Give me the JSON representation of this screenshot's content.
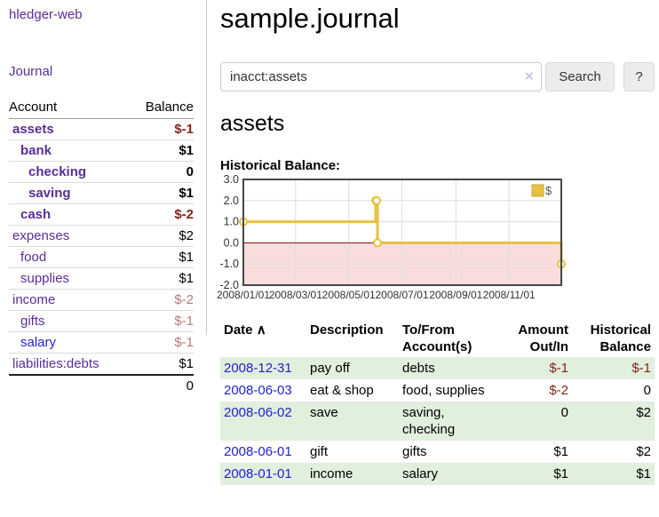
{
  "colors": {
    "accent_purple": "#5a2d96",
    "link_blue": "#2222cc",
    "negative_dark_red": "#86231c",
    "negative_light_red": "#bb7a7a",
    "row_stripe_green": "#e1efdd",
    "series_gold": "#e7c13f",
    "zero_line_red": "#8b0000",
    "negative_region_pink": "#f9dddd"
  },
  "sidebar": {
    "brand": "hledger-web",
    "nav_journal": "Journal",
    "accounts": {
      "header_account": "Account",
      "header_balance": "Balance",
      "rows": [
        {
          "name": "assets",
          "level": 0,
          "balance": "$-1",
          "bold": true,
          "balance_tone": "dark"
        },
        {
          "name": "bank",
          "level": 1,
          "balance": "$1",
          "bold": true,
          "balance_tone": "normal"
        },
        {
          "name": "checking",
          "level": 2,
          "balance": "0",
          "bold": true,
          "balance_tone": "normal"
        },
        {
          "name": "saving",
          "level": 2,
          "balance": "$1",
          "bold": true,
          "balance_tone": "normal"
        },
        {
          "name": "cash",
          "level": 1,
          "balance": "$-2",
          "bold": true,
          "balance_tone": "dark"
        },
        {
          "name": "expenses",
          "level": 0,
          "balance": "$2",
          "bold": false,
          "balance_tone": "normal"
        },
        {
          "name": "food",
          "level": 1,
          "balance": "$1",
          "bold": false,
          "balance_tone": "normal"
        },
        {
          "name": "supplies",
          "level": 1,
          "balance": "$1",
          "bold": false,
          "balance_tone": "normal"
        },
        {
          "name": "income",
          "level": 0,
          "balance": "$-2",
          "bold": false,
          "balance_tone": "light"
        },
        {
          "name": "gifts",
          "level": 1,
          "balance": "$-1",
          "bold": false,
          "balance_tone": "light"
        },
        {
          "name": "salary",
          "level": 1,
          "balance": "$-1",
          "bold": false,
          "balance_tone": "light",
          "link_color": "blue"
        },
        {
          "name": "liabilities:debts",
          "level": 0,
          "balance": "$1",
          "bold": false,
          "balance_tone": "normal"
        }
      ],
      "total": "0"
    }
  },
  "main": {
    "title": "sample.journal",
    "search": {
      "value": "inacct:assets",
      "clear_icon": "×",
      "search_button": "Search",
      "help_button": "?"
    },
    "account_heading": "assets",
    "chart_title": "Historical Balance:",
    "chart_data": {
      "type": "line",
      "step": true,
      "title": "Historical Balance:",
      "series": [
        {
          "name": "$",
          "color": "#e7c13f",
          "points": [
            {
              "date": "2008-01-01",
              "value": 1
            },
            {
              "date": "2008-06-01",
              "value": 2
            },
            {
              "date": "2008-06-02",
              "value": 2
            },
            {
              "date": "2008-06-03",
              "value": 0
            },
            {
              "date": "2008-12-31",
              "value": -1
            }
          ]
        }
      ],
      "xlim": [
        "2008-01-01",
        "2008-12-31"
      ],
      "ylim": [
        -2,
        3
      ],
      "yticks": [
        "3.0",
        "2.0",
        "1.0",
        "0.0",
        "-1.0",
        "-2.0"
      ],
      "xticks": [
        {
          "date": "2008-01-01",
          "label": "2008/01/01"
        },
        {
          "date": "2008-03-01",
          "label": "2008/03/01"
        },
        {
          "date": "2008-05-01",
          "label": "2008/05/01"
        },
        {
          "date": "2008-07-01",
          "label": "2008/07/01"
        },
        {
          "date": "2008-09-01",
          "label": "2008/09/01"
        },
        {
          "date": "2008-11-01",
          "label": "2008/11/01"
        }
      ],
      "legend": {
        "label": "$",
        "position": "top-right"
      },
      "grid": true
    },
    "register": {
      "headers": {
        "date": "Date",
        "sort_icon": "∧",
        "description": "Description",
        "accounts": "To/From Account(s)",
        "amount": "Amount Out/In",
        "balance": "Historical Balance"
      },
      "rows": [
        {
          "date": "2008-12-31",
          "description": "pay off",
          "accounts": "debts",
          "amount": "$-1",
          "amount_negative": true,
          "balance": "$-1",
          "balance_negative": true
        },
        {
          "date": "2008-06-03",
          "description": "eat & shop",
          "accounts": "food, supplies",
          "amount": "$-2",
          "amount_negative": true,
          "balance": "0",
          "balance_negative": false
        },
        {
          "date": "2008-06-02",
          "description": "save",
          "accounts": "saving,\nchecking",
          "amount": "0",
          "amount_negative": false,
          "balance": "$2",
          "balance_negative": false
        },
        {
          "date": "2008-06-01",
          "description": "gift",
          "accounts": "gifts",
          "amount": "$1",
          "amount_negative": false,
          "balance": "$2",
          "balance_negative": false
        },
        {
          "date": "2008-01-01",
          "description": "income",
          "accounts": "salary",
          "amount": "$1",
          "amount_negative": false,
          "balance": "$1",
          "balance_negative": false
        }
      ]
    }
  }
}
